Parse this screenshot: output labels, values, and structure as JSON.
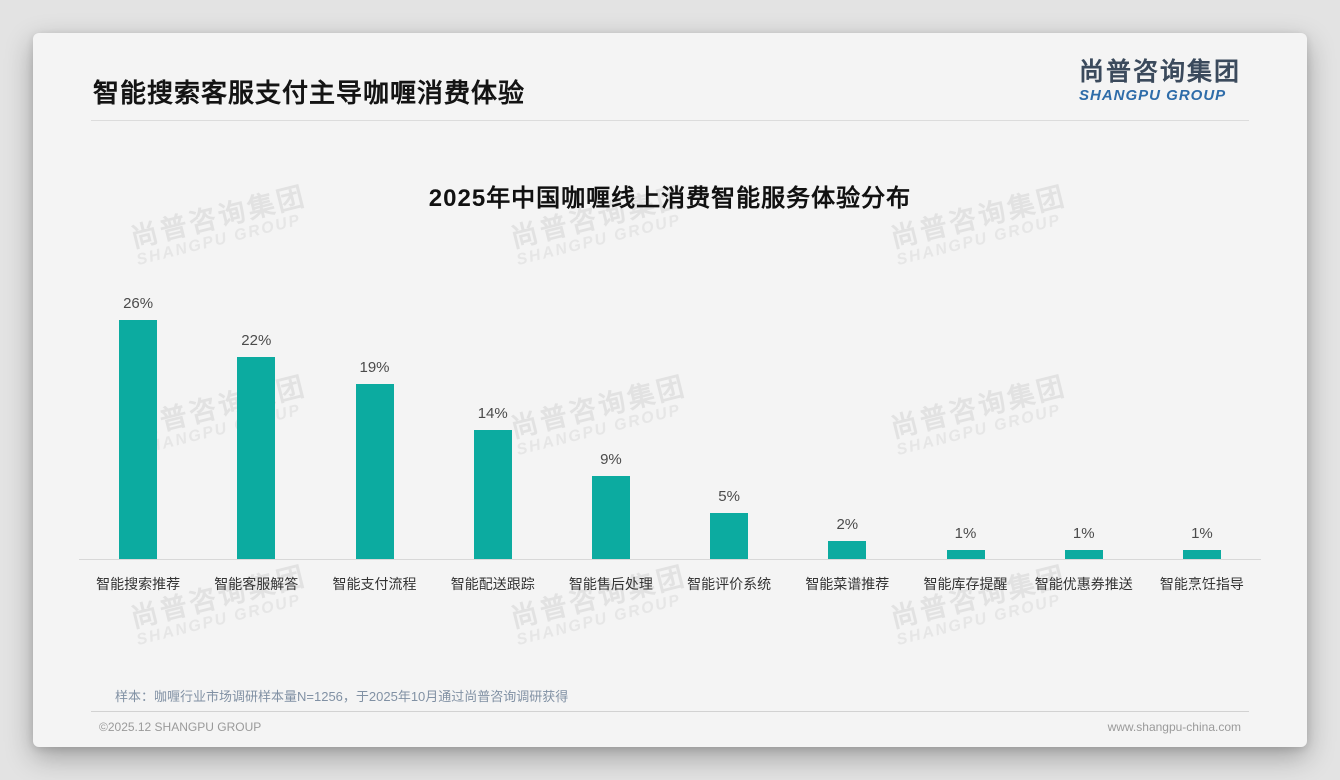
{
  "header": {
    "title": "智能搜索客服支付主导咖喱消费体验"
  },
  "brand": {
    "name_cn": "尚普咨询集团",
    "name_en": "SHANGPU GROUP",
    "name_cn_color": "#3b4a5c",
    "name_en_color": "#2e6ca9"
  },
  "watermark": {
    "line1": "尚普咨询集团",
    "line2": "SHANGPU GROUP"
  },
  "chart_data": {
    "type": "bar",
    "title": "2025年中国咖喱线上消费智能服务体验分布",
    "categories": [
      "智能搜索推荐",
      "智能客服解答",
      "智能支付流程",
      "智能配送跟踪",
      "智能售后处理",
      "智能评价系统",
      "智能菜谱推荐",
      "智能库存提醒",
      "智能优惠券推送",
      "智能烹饪指导"
    ],
    "values": [
      26,
      22,
      19,
      14,
      9,
      5,
      2,
      1,
      1,
      1
    ],
    "unit": "%",
    "bar_color": "#0caba0",
    "value_label_color": "#4b4b4b",
    "xlabel": "",
    "ylabel": "",
    "ylim": [
      0,
      26
    ],
    "grid": false,
    "legend": "none",
    "value_label_position": "above-bars"
  },
  "footnote": {
    "sample_text": "样本：咖喱行业市场调研样本量N=1256，于2025年10月通过尚普咨询调研获得"
  },
  "footer": {
    "copyright": "©2025.12 SHANGPU GROUP",
    "website": "www.shangpu-china.com"
  }
}
